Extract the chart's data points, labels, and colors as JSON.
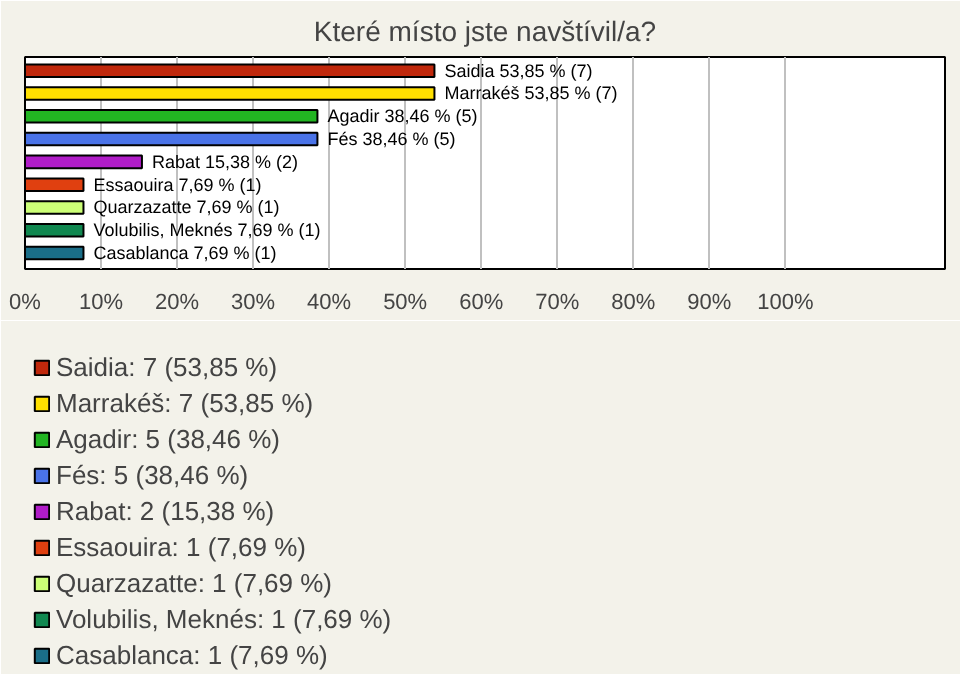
{
  "chart_data": {
    "type": "bar",
    "orientation": "horizontal",
    "title": "Které místo jste navštívil/a?",
    "categories": [
      null,
      null,
      null,
      null,
      null,
      null,
      null,
      null,
      null
    ],
    "series": [
      {
        "name": "Saidia: 7 (53,85 %)",
        "color": "#c0280c",
        "values": [
          53.85,
          null,
          null,
          null,
          null,
          null,
          null,
          null,
          null
        ]
      },
      {
        "name": "Marrakéš: 7 (53,85 %)",
        "color": "#ffe000",
        "values": [
          null,
          53.85,
          null,
          null,
          null,
          null,
          null,
          null,
          null
        ]
      },
      {
        "name": "Agadir: 5 (38,46 %)",
        "color": "#22b522",
        "values": [
          null,
          null,
          38.46,
          null,
          null,
          null,
          null,
          null,
          null
        ]
      },
      {
        "name": "Fés: 5 (38,46 %)",
        "color": "#4a73e8",
        "values": [
          null,
          null,
          null,
          38.46,
          null,
          null,
          null,
          null,
          null
        ]
      },
      {
        "name": "Rabat: 2 (15,38 %)",
        "color": "#b01cc8",
        "values": [
          null,
          null,
          null,
          null,
          15.38,
          null,
          null,
          null,
          null
        ]
      },
      {
        "name": "Essaouira: 1 (7,69 %)",
        "color": "#e04010",
        "values": [
          null,
          null,
          null,
          null,
          null,
          7.69,
          null,
          null,
          null
        ]
      },
      {
        "name": "Quarzazatte: 1 (7,69 %)",
        "color": "#ccff77",
        "values": [
          null,
          null,
          null,
          null,
          null,
          null,
          7.69,
          null,
          null
        ]
      },
      {
        "name": "Volubilis, Meknés: 1 (7,69 %)",
        "color": "#108850",
        "values": [
          null,
          null,
          null,
          null,
          null,
          null,
          null,
          7.69,
          null
        ]
      },
      {
        "name": "Casablanca: 1 (7,69 %)",
        "color": "#1a6e88",
        "values": [
          null,
          null,
          null,
          null,
          null,
          null,
          null,
          null,
          7.69
        ]
      }
    ],
    "value_labels": [
      "Saidia 53,85 % (7)",
      "Marrakéš 53,85 % (7)",
      "Agadir 38,46 % (5)",
      "Fés 38,46 % (5)",
      "Rabat 15,38 % (2)",
      "Essaouira 7,69 % (1)",
      "Quarzazatte 7,69 % (1)",
      "Volubilis, Meknés 7,69 % (1)",
      "Casablanca 7,69 % (1)"
    ],
    "xlim": [
      0,
      121
    ],
    "xticks": [
      {
        "value": 0,
        "label": "0%"
      },
      {
        "value": 10,
        "label": "10%"
      },
      {
        "value": 20,
        "label": "20%"
      },
      {
        "value": 30,
        "label": "30%"
      },
      {
        "value": 40,
        "label": "40%"
      },
      {
        "value": 50,
        "label": "50%"
      },
      {
        "value": 60,
        "label": "60%"
      },
      {
        "value": 70,
        "label": "70%"
      },
      {
        "value": 80,
        "label": "80%"
      },
      {
        "value": 90,
        "label": "90%"
      },
      {
        "value": 100,
        "label": "100%"
      }
    ],
    "grid": "x",
    "legend": "bottom"
  }
}
